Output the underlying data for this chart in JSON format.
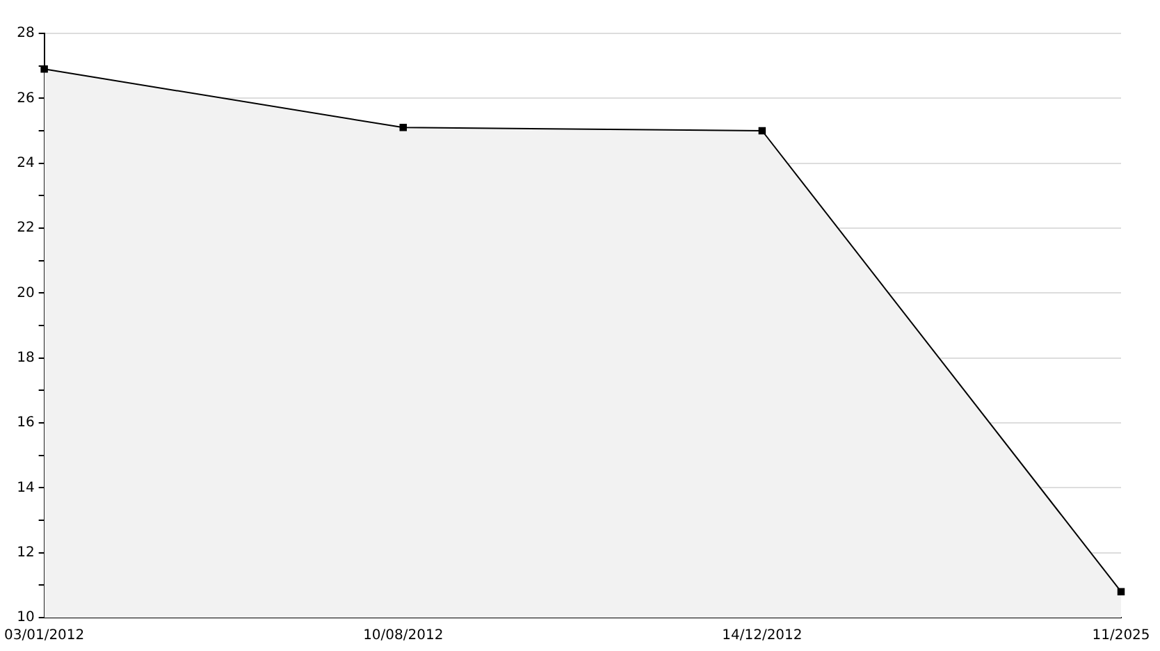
{
  "chart_data": {
    "type": "area",
    "categories": [
      "03/01/2012",
      "10/08/2012",
      "14/12/2012",
      "11/2025"
    ],
    "series": [
      {
        "color": "#000000",
        "values": [
          26.9,
          25.1,
          25.0,
          10.8
        ]
      }
    ],
    "ylim": [
      10,
      28
    ],
    "yticks": [
      10,
      {
        "value": 11,
        "label": null
      },
      12,
      {
        "value": 13,
        "label": null
      },
      14,
      {
        "value": 15,
        "label": null
      },
      16,
      {
        "value": 17,
        "label": null
      },
      18,
      {
        "value": 19,
        "label": null
      },
      20,
      {
        "value": 21,
        "label": null
      },
      22,
      {
        "value": 23,
        "label": null
      },
      24,
      {
        "value": 25,
        "label": null
      },
      26,
      {
        "value": 27,
        "label": null
      },
      28
    ],
    "grid": "y",
    "legend": false,
    "marker": "square",
    "line_style": "solid"
  }
}
